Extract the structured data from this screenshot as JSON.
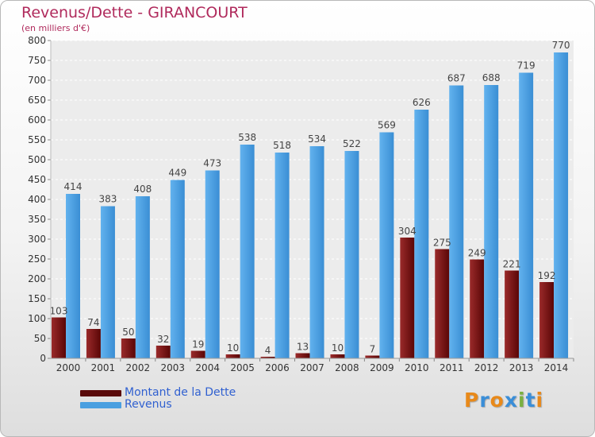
{
  "chart_data": {
    "type": "bar",
    "title": "Revenus/Dette - GIRANCOURT",
    "subtitle": "(en milliers d'€)",
    "categories": [
      "2000",
      "2001",
      "2002",
      "2003",
      "2004",
      "2005",
      "2006",
      "2007",
      "2008",
      "2009",
      "2010",
      "2011",
      "2012",
      "2013",
      "2014"
    ],
    "series": [
      {
        "name": "Montant de la Dette",
        "color": "#7a0f0f",
        "values": [
          103,
          74,
          50,
          32,
          19,
          10,
          4,
          13,
          10,
          7,
          304,
          275,
          249,
          221,
          192
        ]
      },
      {
        "name": "Revenus",
        "color": "#4a9fe0",
        "values": [
          414,
          383,
          408,
          449,
          473,
          538,
          518,
          534,
          522,
          569,
          626,
          687,
          688,
          719,
          770
        ]
      }
    ],
    "ylim": [
      0,
      800
    ],
    "yticks": [
      0,
      50,
      100,
      150,
      200,
      250,
      300,
      350,
      400,
      450,
      500,
      550,
      600,
      650,
      700,
      750,
      800
    ],
    "grid": true,
    "legend_position": "bottom-left"
  },
  "logo": {
    "letters": [
      "P",
      "r",
      "o",
      "x",
      "i",
      "t",
      "i"
    ],
    "colors": [
      "#e8891a",
      "#3a8ed8",
      "#e8891a",
      "#3a8ed8",
      "#7ab040",
      "#3a8ed8",
      "#e8891a"
    ]
  }
}
